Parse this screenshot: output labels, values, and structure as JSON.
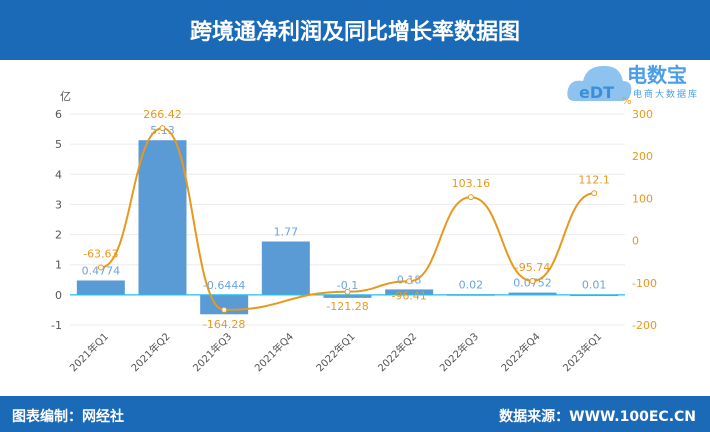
{
  "title": "跨境通净利润及同比增长率数据图",
  "footer": {
    "left": "图表编制：网经社",
    "right": "数据来源：WWW.100EC.CN"
  },
  "logo": {
    "name": "电数宝",
    "sub": "电商大数据库",
    "mark": "eDT"
  },
  "chart_data": {
    "type": "bar+line",
    "categories": [
      "2021年Q1",
      "2021年Q2",
      "2021年Q3",
      "2021年Q4",
      "2022年Q1",
      "2022年Q2",
      "2022年Q3",
      "2022年Q4",
      "2023年Q1"
    ],
    "series": [
      {
        "type": "bar",
        "axis": "left",
        "values": [
          0.4774,
          5.13,
          -0.6444,
          1.77,
          -0.1,
          0.18,
          0.02,
          0.0752,
          0.01
        ],
        "labels": [
          "0.4774",
          "5.13",
          "-0.6444",
          "1.77",
          "-0.1",
          "0.18",
          "0.02",
          "0.0752",
          "0.01"
        ],
        "color": "#5b9bd5"
      },
      {
        "type": "line",
        "axis": "right",
        "smooth": true,
        "values": [
          -63.63,
          266.42,
          -164.28,
          null,
          -121.28,
          -96.41,
          103.16,
          -95.74,
          112.1
        ],
        "labels": [
          "-63.63",
          "266.42",
          "-164.28",
          "",
          "-121.28",
          "-96.41",
          "103.16",
          "-95.74",
          "112.1"
        ],
        "color": "#e8981e"
      }
    ],
    "yleft": {
      "unit": "亿",
      "ylim": [
        -1,
        6
      ],
      "ticks": [
        -1,
        0,
        1,
        2,
        3,
        4,
        5,
        6
      ]
    },
    "yright": {
      "unit": "%",
      "ylim": [
        -200,
        300
      ],
      "ticks": [
        -200,
        -100,
        0,
        100,
        200,
        300
      ]
    },
    "grid": true
  }
}
